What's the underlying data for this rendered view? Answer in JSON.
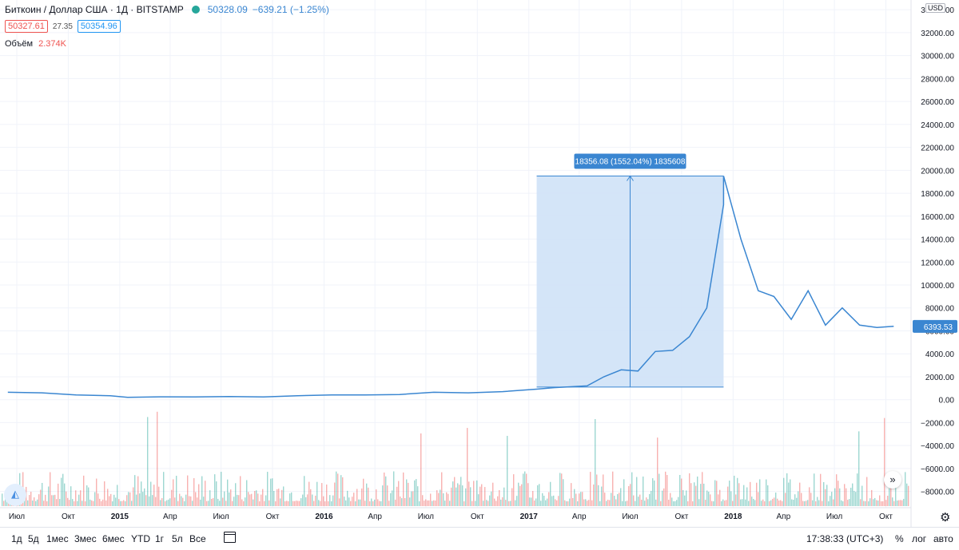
{
  "legend": {
    "title": "Биткоин / Доллар США · 1Д · BITSTAMP",
    "last": "50328.09",
    "change": "−639.21 (−1.25%)",
    "bid": "50327.61",
    "spread": "27.35",
    "ask": "50354.96",
    "volume_label": "Объём",
    "volume_value": "2.374K"
  },
  "currency": "USD",
  "measure_label": "18356.08 (1552.04%) 1835608",
  "current_price_label": "6393.53",
  "timeframes": [
    "1д",
    "5д",
    "1мес",
    "3мес",
    "6мес",
    "YTD",
    "1г",
    "5л",
    "Все"
  ],
  "clock": "17:38:33 (UTC+3)",
  "scale_buttons": {
    "percent": "%",
    "log": "лог",
    "auto": "авто"
  },
  "colors": {
    "line": "#3a86d1",
    "measure_fill": "#cfe2f7",
    "vol_up": "#26a69a",
    "vol_down": "#ef5350",
    "badge": "#3a86d1"
  },
  "chart_data": {
    "type": "line",
    "title": "Биткоин / Доллар США · 1Д · BITSTAMP",
    "x": [
      "2014-06",
      "2014-08",
      "2014-10",
      "2014-12",
      "2015-01",
      "2015-03",
      "2015-05",
      "2015-07",
      "2015-09",
      "2015-11",
      "2016-01",
      "2016-03",
      "2016-05",
      "2016-07",
      "2016-09",
      "2016-11",
      "2017-01",
      "2017-02",
      "2017-04",
      "2017-05",
      "2017-06",
      "2017-07",
      "2017-08",
      "2017-09",
      "2017-10",
      "2017-11",
      "2017-12",
      "2017-12",
      "2018-01",
      "2018-02",
      "2018-03",
      "2018-04",
      "2018-05",
      "2018-06",
      "2018-07",
      "2018-08",
      "2018-09",
      "2018-10"
    ],
    "series": [
      {
        "values": [
          650,
          600,
          420,
          350,
          210,
          250,
          240,
          280,
          240,
          350,
          420,
          410,
          450,
          650,
          600,
          700,
          920,
          1050,
          1200,
          2000,
          2600,
          2500,
          4200,
          4300,
          5500,
          8000,
          17000,
          19500,
          14000,
          9500,
          9000,
          7000,
          9500,
          6500,
          8000,
          6500,
          6300,
          6400
        ]
      }
    ],
    "volume_series_labels": [],
    "x_tick_labels": [
      "Июл",
      "Окт",
      "2015",
      "Апр",
      "Июл",
      "Окт",
      "2016",
      "Апр",
      "Июл",
      "Окт",
      "2017",
      "Апр",
      "Июл",
      "Окт",
      "2018",
      "Апр",
      "Июл",
      "Окт"
    ],
    "y_tick_labels": [
      "34000.00",
      "32000.00",
      "30000.00",
      "28000.00",
      "26000.00",
      "24000.00",
      "22000.00",
      "20000.00",
      "18000.00",
      "16000.00",
      "14000.00",
      "12000.00",
      "10000.00",
      "8000.00",
      "6000.00",
      "4000.00",
      "2000.00",
      "0.00",
      "−2000.00",
      "−4000.00",
      "−6000.00",
      "−8000.00"
    ],
    "ylim": [
      -9000,
      34500
    ],
    "measure": {
      "from": "2017-01",
      "to": "2017-12",
      "low": 1100,
      "high": 19500
    },
    "grid": true,
    "xlabel": "",
    "ylabel": ""
  }
}
